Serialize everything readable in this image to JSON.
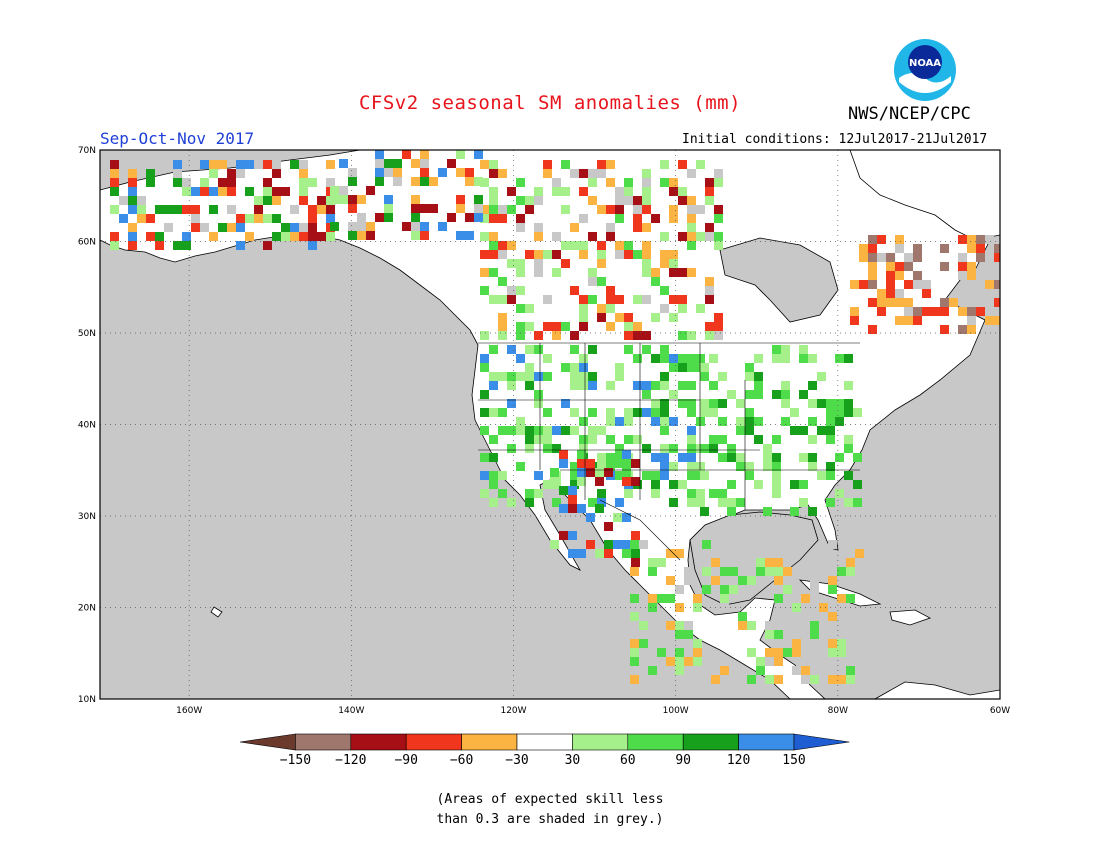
{
  "header": {
    "title": "CFSv2 seasonal SM anomalies (mm)",
    "organization": "NWS/NCEP/CPC",
    "logo_text": "NOAA",
    "season": "Sep-Oct-Nov 2017",
    "initial_conditions": "Initial conditions: 12Jul2017-21Jul2017"
  },
  "axes": {
    "lat_labels": [
      "70N",
      "60N",
      "50N",
      "40N",
      "30N",
      "20N",
      "10N"
    ],
    "lon_labels": [
      "160W",
      "140W",
      "120W",
      "100W",
      "80W",
      "60W"
    ],
    "lat_range": [
      10,
      70
    ],
    "lon_range": [
      -171,
      -60
    ],
    "grid": "dotted"
  },
  "legend": {
    "bins": [
      {
        "range": "< -150",
        "color": "#6b3a2c"
      },
      {
        "range": "-150 to -120",
        "color": "#a0776c"
      },
      {
        "range": "-120 to -90",
        "color": "#a50f15"
      },
      {
        "range": "-90 to -60",
        "color": "#f0361c"
      },
      {
        "range": "-60 to -30",
        "color": "#fbb441"
      },
      {
        "range": "-30 to 30",
        "color": "#ffffff"
      },
      {
        "range": "30 to 60",
        "color": "#a6f08c"
      },
      {
        "range": "60 to 90",
        "color": "#4fdc4a"
      },
      {
        "range": "90 to 120",
        "color": "#16a01c"
      },
      {
        "range": "120 to 150",
        "color": "#3a8ee8"
      },
      {
        "range": "> 150",
        "color": "#1e5ed2"
      }
    ],
    "tick_labels": [
      "-150",
      "-120",
      "-90",
      "-60",
      "-30",
      "30",
      "60",
      "90",
      "120",
      "150"
    ],
    "skill_mask_color": "#c8c8c8"
  },
  "footnote": {
    "line1": "(Areas of expected skill less",
    "line2": "than 0.3 are shaded in grey.)"
  },
  "colors": {
    "ocean": "#c8c8c8",
    "land": "#ffffff",
    "title": "#e8141c",
    "season": "#1f3fd6"
  }
}
